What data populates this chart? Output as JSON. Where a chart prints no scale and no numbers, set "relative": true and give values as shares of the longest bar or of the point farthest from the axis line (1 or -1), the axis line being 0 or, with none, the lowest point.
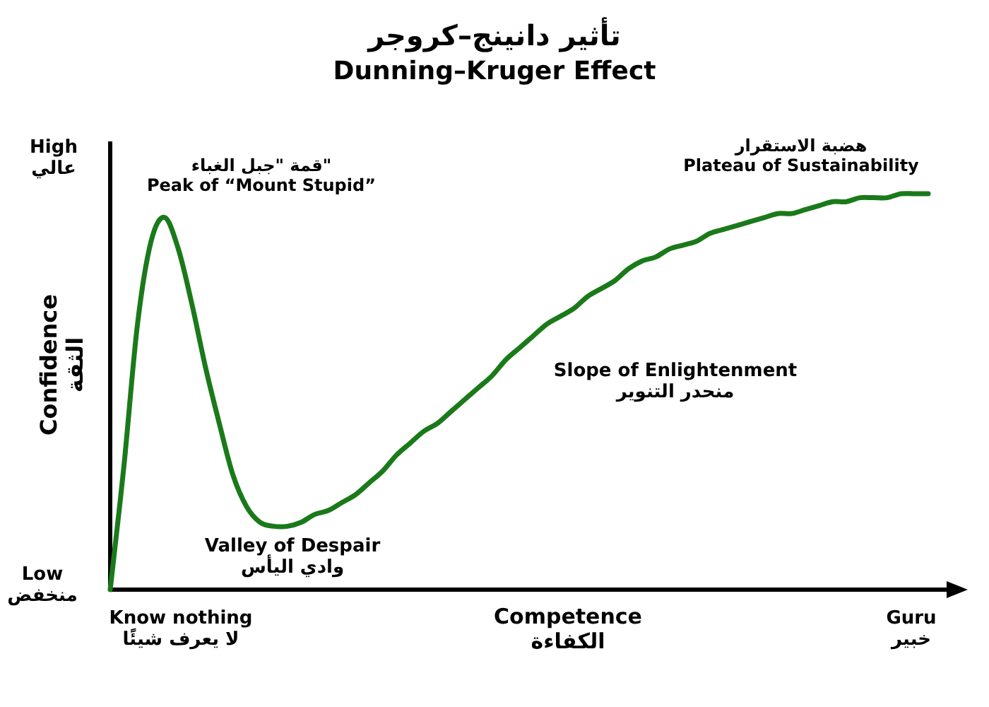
{
  "chart_data": {
    "type": "line",
    "relative": true,
    "title": "تأثير دانينج–كروجر",
    "subtitle": "Dunning–Kruger Effect",
    "xlabel": "Competence\nالكفاءة",
    "ylabel": "Confidence\nالثقة",
    "categories": [
      null,
      null,
      null,
      null,
      null,
      null,
      null,
      null,
      null,
      null,
      null,
      null,
      null,
      null,
      null,
      null,
      null,
      null,
      null,
      null,
      null,
      null,
      null,
      null,
      null,
      null,
      null,
      null,
      null,
      null,
      null,
      null,
      null,
      null,
      null,
      null,
      null,
      null,
      null,
      null,
      null,
      null,
      null,
      null,
      null,
      null,
      null,
      null,
      null,
      null,
      null,
      null,
      null,
      null,
      null,
      null,
      null,
      null,
      null,
      null,
      null
    ],
    "series": [
      {
        "color": "#1a7a1a",
        "values": [
          0,
          0.31,
          0.67,
          0.88,
          0.94,
          0.86,
          0.72,
          0.56,
          0.42,
          0.29,
          0.21,
          0.17,
          0.16,
          0.16,
          0.17,
          0.19,
          0.2,
          0.22,
          0.24,
          0.27,
          0.3,
          0.34,
          0.37,
          0.4,
          0.42,
          0.45,
          0.48,
          0.51,
          0.54,
          0.58,
          0.61,
          0.64,
          0.67,
          0.69,
          0.71,
          0.74,
          0.76,
          0.78,
          0.81,
          0.83,
          0.84,
          0.86,
          0.87,
          0.88,
          0.9,
          0.91,
          0.92,
          0.93,
          0.94,
          0.95,
          0.95,
          0.96,
          0.97,
          0.98,
          0.98,
          0.99,
          0.99,
          0.99,
          1,
          1,
          1
        ]
      }
    ],
    "annotations": [
      "High\nعالي",
      "Low\nمنخفض",
      "Know nothing\nلا يعرف شيئًا",
      "Guru\nخبير",
      "قمة \"جبل الغباء\"\nPeak of “Mount Stupid”",
      "هضبة الاستقرار\nPlateau of Sustainability",
      "Slope of Enlightenment\nمنحدر التنوير",
      "Valley of Despair\nوادي اليأس"
    ]
  }
}
